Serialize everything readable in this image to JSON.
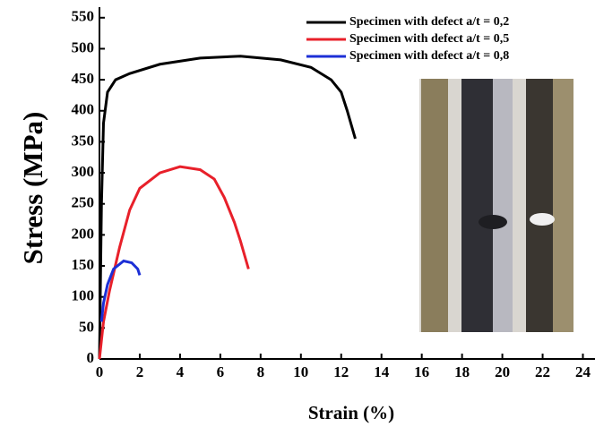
{
  "chart_data": {
    "type": "line",
    "x_label": "Strain (%)",
    "y_label": "Stress (MPa)",
    "xlim": [
      0,
      24.6
    ],
    "ylim": [
      0,
      567
    ],
    "xticks": [
      0,
      2,
      4,
      6,
      8,
      10,
      12,
      14,
      16,
      18,
      20,
      22,
      24
    ],
    "yticks": [
      0,
      50,
      100,
      150,
      200,
      250,
      300,
      350,
      400,
      450,
      500,
      550
    ],
    "legend": "upper right",
    "series": [
      {
        "name": "Specimen with defect a/t = 0,2",
        "color": "#000000",
        "x": [
          0,
          0.1,
          0.2,
          0.4,
          0.8,
          1.5,
          3,
          5,
          7,
          9,
          10.5,
          11.5,
          12,
          12.3,
          12.7
        ],
        "values": [
          0,
          250,
          380,
          430,
          450,
          460,
          475,
          485,
          488,
          482,
          470,
          450,
          430,
          400,
          355
        ]
      },
      {
        "name": "Specimen with defect a/t = 0,5",
        "color": "#e8202a",
        "x": [
          0,
          0.2,
          0.5,
          1,
          1.5,
          2,
          3,
          4,
          5,
          5.7,
          6.2,
          6.7,
          7,
          7.4
        ],
        "values": [
          0,
          60,
          110,
          180,
          240,
          275,
          300,
          310,
          305,
          290,
          260,
          220,
          190,
          145
        ]
      },
      {
        "name": "Specimen with defect a/t = 0,8",
        "color": "#1c2fd6",
        "x": [
          0.1,
          0.2,
          0.4,
          0.7,
          1.2,
          1.6,
          1.9,
          2
        ],
        "values": [
          60,
          90,
          120,
          145,
          158,
          155,
          145,
          135
        ]
      }
    ]
  }
}
